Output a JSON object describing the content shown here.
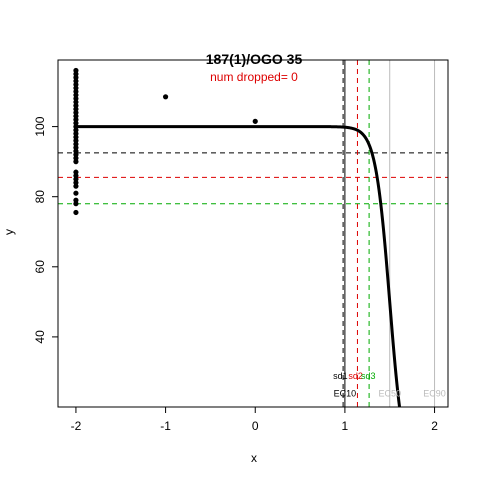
{
  "chart_data": {
    "type": "scatter",
    "title": "187(1)/OGO 35",
    "subtitle": "num dropped= 0",
    "xlabel": "x",
    "ylabel": "y",
    "xlim": [
      -2.2,
      2.15
    ],
    "ylim": [
      20,
      119
    ],
    "x_ticks": [
      -2,
      -1,
      0,
      1,
      2
    ],
    "y_ticks": [
      40,
      60,
      80,
      100
    ],
    "x_tick_labels": [
      "-2",
      "-1",
      "0",
      "1",
      "2"
    ],
    "y_tick_labels": [
      "40",
      "60",
      "80",
      "100"
    ],
    "grid": false,
    "points": [
      {
        "x": -2,
        "y": 116
      },
      {
        "x": -2,
        "y": 115
      },
      {
        "x": -2,
        "y": 114
      },
      {
        "x": -2,
        "y": 113
      },
      {
        "x": -2,
        "y": 112
      },
      {
        "x": -2,
        "y": 111
      },
      {
        "x": -2,
        "y": 110
      },
      {
        "x": -2,
        "y": 109
      },
      {
        "x": -2,
        "y": 108
      },
      {
        "x": -2,
        "y": 107
      },
      {
        "x": -2,
        "y": 106
      },
      {
        "x": -2,
        "y": 105
      },
      {
        "x": -2,
        "y": 104
      },
      {
        "x": -2,
        "y": 103
      },
      {
        "x": -2,
        "y": 102
      },
      {
        "x": -2,
        "y": 101
      },
      {
        "x": -2,
        "y": 100
      },
      {
        "x": -2,
        "y": 99
      },
      {
        "x": -2,
        "y": 98
      },
      {
        "x": -2,
        "y": 97
      },
      {
        "x": -2,
        "y": 96
      },
      {
        "x": -2,
        "y": 95
      },
      {
        "x": -2,
        "y": 94
      },
      {
        "x": -2,
        "y": 93
      },
      {
        "x": -2,
        "y": 92
      },
      {
        "x": -2,
        "y": 91
      },
      {
        "x": -2,
        "y": 90
      },
      {
        "x": -2,
        "y": 87
      },
      {
        "x": -2,
        "y": 86
      },
      {
        "x": -2,
        "y": 85
      },
      {
        "x": -2,
        "y": 84
      },
      {
        "x": -2,
        "y": 83
      },
      {
        "x": -2,
        "y": 81
      },
      {
        "x": -2,
        "y": 79
      },
      {
        "x": -2,
        "y": 78
      },
      {
        "x": -2,
        "y": 75.5
      },
      {
        "x": -1,
        "y": 108.5
      },
      {
        "x": 0,
        "y": 101.5
      }
    ],
    "curve": {
      "top": 100,
      "bottom": 0,
      "ec50": 1.5,
      "hill": 5.5,
      "x_from": -2,
      "x_to": 2
    },
    "hlines": [
      {
        "y": 92.5,
        "color": "#000000"
      },
      {
        "y": 85.5,
        "color": "#dd0000"
      },
      {
        "y": 78,
        "color": "#00aa00"
      }
    ],
    "vlines": [
      {
        "x": 0.98,
        "color": "#000000",
        "dash": true
      },
      {
        "x": 1.14,
        "color": "#dd0000",
        "dash": true
      },
      {
        "x": 1.27,
        "color": "#00aa00",
        "dash": true
      },
      {
        "x": 1.0,
        "color": "#000000",
        "dash": false
      },
      {
        "x": 1.5,
        "color": "#bbbbbb",
        "dash": false
      },
      {
        "x": 2.0,
        "color": "#bbbbbb",
        "dash": false
      }
    ],
    "annotations": [
      {
        "text": "sd1",
        "x": 0.95,
        "y": 28,
        "color": "#000000"
      },
      {
        "text": "sd2",
        "x": 1.12,
        "y": 28,
        "color": "#dd0000"
      },
      {
        "text": "sd3",
        "x": 1.26,
        "y": 28,
        "color": "#00aa00"
      },
      {
        "text": "EC10",
        "x": 1.0,
        "y": 23,
        "color": "#000000"
      },
      {
        "text": "EC50",
        "x": 1.5,
        "y": 23,
        "color": "#bbbbbb"
      },
      {
        "text": "EC90",
        "x": 2.0,
        "y": 23,
        "color": "#bbbbbb"
      }
    ]
  }
}
